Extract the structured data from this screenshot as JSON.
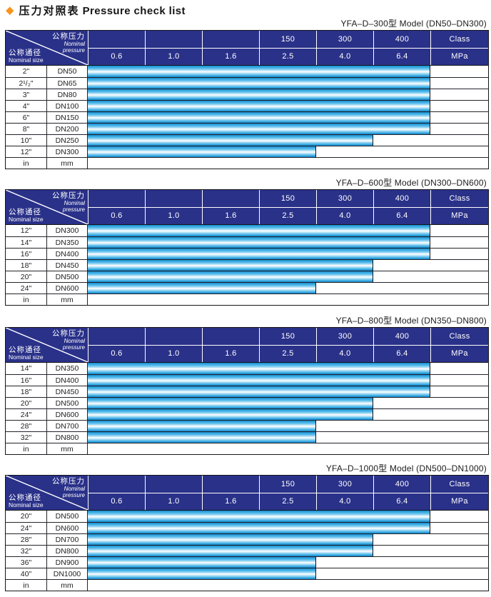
{
  "page": {
    "diamond": "◆",
    "title_zh": "压力对照表",
    "title_en": "Pressure check list"
  },
  "colors": {
    "header_navy": "#2a3189",
    "bar_cyan": "#2fa5e0",
    "diamond_orange": "#f7941e",
    "border_dark": "#15151b"
  },
  "header": {
    "diagonal": {
      "top_zh": "公称压力",
      "top_en_line1": "Nominal",
      "top_en_line2": "pressure",
      "bottom_zh": "公称通径",
      "bottom_en": "Nominal size"
    },
    "class_row": [
      "",
      "",
      "",
      "150",
      "300",
      "400",
      "Class"
    ],
    "mpa_row": [
      "0.6",
      "1.0",
      "1.6",
      "2.5",
      "4.0",
      "6.4",
      "MPa"
    ],
    "mpa_columns": [
      0.6,
      1.0,
      1.6,
      2.5,
      4.0,
      6.4
    ],
    "class_columns": [
      "",
      "",
      "",
      "150",
      "300",
      "400"
    ]
  },
  "footer_row": {
    "inch_unit": "in",
    "dn_unit": "mm"
  },
  "tables": [
    {
      "caption": "YFA–D–300型  Model (DN50–DN300)",
      "rows": [
        {
          "inch": "2\"",
          "dn": "DN50",
          "bar_cols": 6,
          "mpa_min": 0.6,
          "mpa_max": 6.4
        },
        {
          "inch": "2¹/₂\"",
          "dn": "DN65",
          "bar_cols": 6,
          "mpa_min": 0.6,
          "mpa_max": 6.4
        },
        {
          "inch": "3\"",
          "dn": "DN80",
          "bar_cols": 6,
          "mpa_min": 0.6,
          "mpa_max": 6.4
        },
        {
          "inch": "4\"",
          "dn": "DN100",
          "bar_cols": 6,
          "mpa_min": 0.6,
          "mpa_max": 6.4
        },
        {
          "inch": "6\"",
          "dn": "DN150",
          "bar_cols": 6,
          "mpa_min": 0.6,
          "mpa_max": 6.4
        },
        {
          "inch": "8\"",
          "dn": "DN200",
          "bar_cols": 6,
          "mpa_min": 0.6,
          "mpa_max": 6.4
        },
        {
          "inch": "10\"",
          "dn": "DN250",
          "bar_cols": 5,
          "mpa_min": 0.6,
          "mpa_max": 4.0
        },
        {
          "inch": "12\"",
          "dn": "DN300",
          "bar_cols": 4,
          "mpa_min": 0.6,
          "mpa_max": 2.5
        }
      ]
    },
    {
      "caption": "YFA–D–600型  Model (DN300–DN600)",
      "rows": [
        {
          "inch": "12\"",
          "dn": "DN300",
          "bar_cols": 6,
          "mpa_min": 0.6,
          "mpa_max": 6.4
        },
        {
          "inch": "14\"",
          "dn": "DN350",
          "bar_cols": 6,
          "mpa_min": 0.6,
          "mpa_max": 6.4
        },
        {
          "inch": "16\"",
          "dn": "DN400",
          "bar_cols": 6,
          "mpa_min": 0.6,
          "mpa_max": 6.4
        },
        {
          "inch": "18\"",
          "dn": "DN450",
          "bar_cols": 5,
          "mpa_min": 0.6,
          "mpa_max": 4.0
        },
        {
          "inch": "20\"",
          "dn": "DN500",
          "bar_cols": 5,
          "mpa_min": 0.6,
          "mpa_max": 4.0
        },
        {
          "inch": "24\"",
          "dn": "DN600",
          "bar_cols": 4,
          "mpa_min": 0.6,
          "mpa_max": 2.5
        }
      ]
    },
    {
      "caption": "YFA–D–800型  Model (DN350–DN800)",
      "rows": [
        {
          "inch": "14\"",
          "dn": "DN350",
          "bar_cols": 6,
          "mpa_min": 0.6,
          "mpa_max": 6.4
        },
        {
          "inch": "16\"",
          "dn": "DN400",
          "bar_cols": 6,
          "mpa_min": 0.6,
          "mpa_max": 6.4
        },
        {
          "inch": "18\"",
          "dn": "DN450",
          "bar_cols": 6,
          "mpa_min": 0.6,
          "mpa_max": 6.4
        },
        {
          "inch": "20\"",
          "dn": "DN500",
          "bar_cols": 5,
          "mpa_min": 0.6,
          "mpa_max": 4.0
        },
        {
          "inch": "24\"",
          "dn": "DN600",
          "bar_cols": 5,
          "mpa_min": 0.6,
          "mpa_max": 4.0
        },
        {
          "inch": "28\"",
          "dn": "DN700",
          "bar_cols": 4,
          "mpa_min": 0.6,
          "mpa_max": 2.5
        },
        {
          "inch": "32\"",
          "dn": "DN800",
          "bar_cols": 4,
          "mpa_min": 0.6,
          "mpa_max": 2.5
        }
      ]
    },
    {
      "caption": "YFA–D–1000型  Model (DN500–DN1000)",
      "rows": [
        {
          "inch": "20\"",
          "dn": "DN500",
          "bar_cols": 6,
          "mpa_min": 0.6,
          "mpa_max": 6.4
        },
        {
          "inch": "24\"",
          "dn": "DN600",
          "bar_cols": 6,
          "mpa_min": 0.6,
          "mpa_max": 6.4
        },
        {
          "inch": "28\"",
          "dn": "DN700",
          "bar_cols": 5,
          "mpa_min": 0.6,
          "mpa_max": 4.0
        },
        {
          "inch": "32\"",
          "dn": "DN800",
          "bar_cols": 5,
          "mpa_min": 0.6,
          "mpa_max": 4.0
        },
        {
          "inch": "36\"",
          "dn": "DN900",
          "bar_cols": 4,
          "mpa_min": 0.6,
          "mpa_max": 2.5
        },
        {
          "inch": "40\"",
          "dn": "DN1000",
          "bar_cols": 4,
          "mpa_min": 0.6,
          "mpa_max": 2.5
        }
      ]
    }
  ]
}
